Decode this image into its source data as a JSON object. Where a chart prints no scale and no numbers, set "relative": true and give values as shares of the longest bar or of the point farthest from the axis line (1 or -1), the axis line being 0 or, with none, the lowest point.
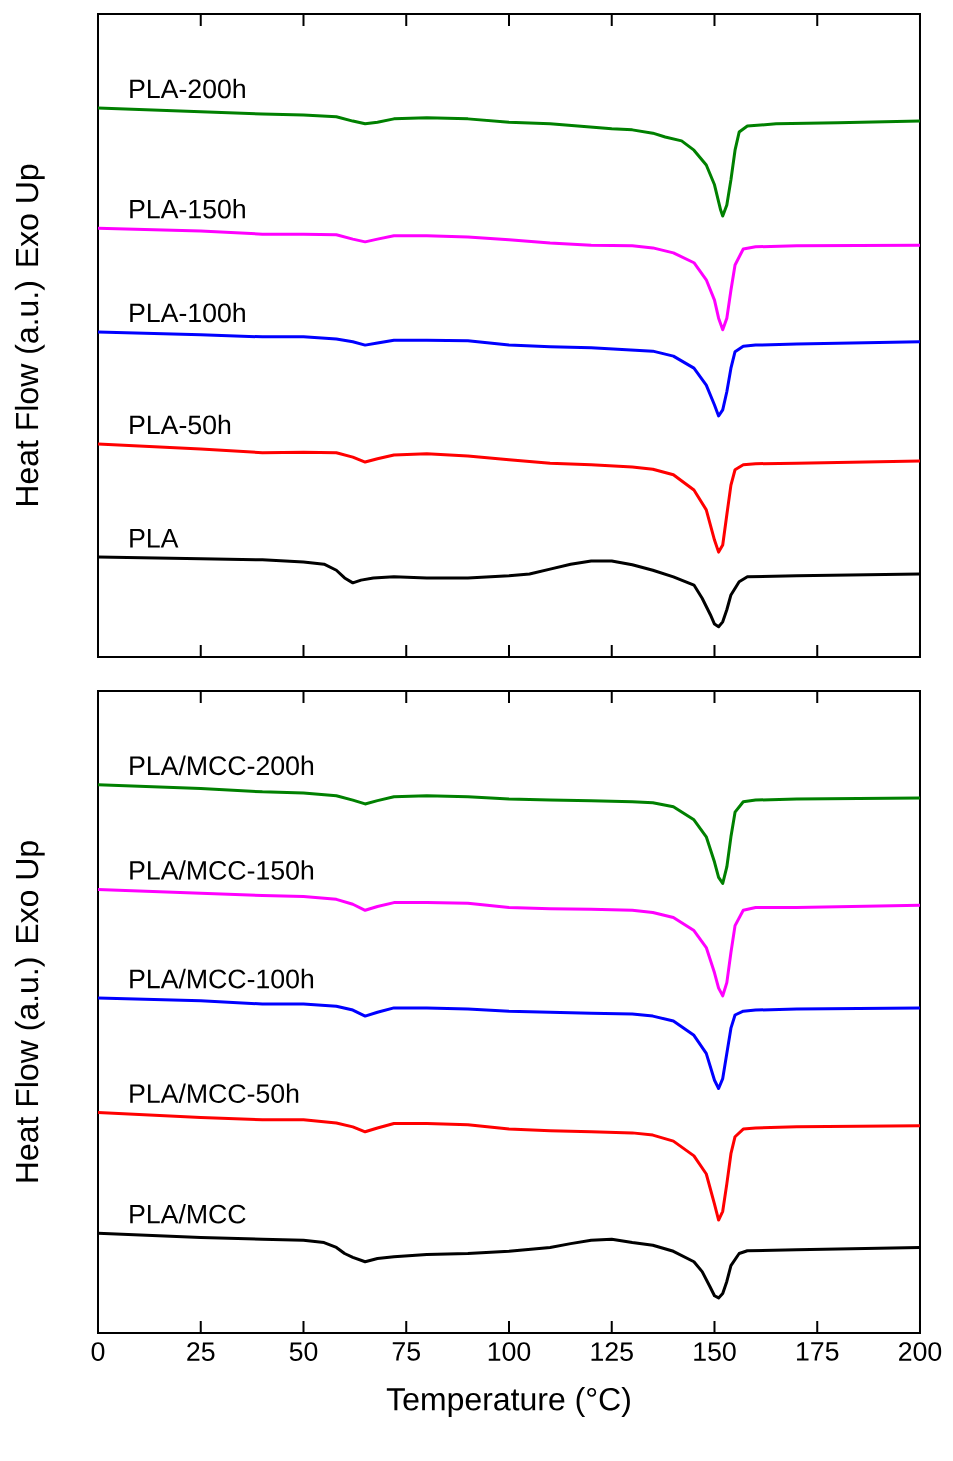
{
  "chart_data": [
    {
      "type": "line",
      "relative": true,
      "ylabel": "Heat Flow (a.u.) Exo Up",
      "xlim": [
        0,
        200
      ],
      "xticks": [
        0,
        25,
        50,
        75,
        100,
        125,
        150,
        175,
        200
      ],
      "tick_labels": false,
      "marker": "none",
      "series": [
        {
          "name": "PLA-200h",
          "color": "#008000",
          "x": [
            0,
            25,
            40,
            50,
            58,
            62,
            65,
            68,
            72,
            80,
            90,
            100,
            110,
            120,
            125,
            130,
            135,
            138,
            142,
            145,
            148,
            150,
            151.5,
            152,
            153,
            154,
            155,
            156,
            158,
            165,
            180,
            200
          ],
          "values": [
            1.0,
            0.993,
            0.989,
            0.987,
            0.984,
            0.976,
            0.971,
            0.974,
            0.98,
            0.982,
            0.98,
            0.974,
            0.971,
            0.965,
            0.962,
            0.96,
            0.954,
            0.947,
            0.94,
            0.923,
            0.896,
            0.86,
            0.814,
            0.803,
            0.823,
            0.869,
            0.923,
            0.956,
            0.967,
            0.971,
            0.973,
            0.976
          ]
        },
        {
          "name": "PLA-150h",
          "color": "#ff00ff",
          "x": [
            0,
            25,
            40,
            50,
            58,
            62,
            65,
            68,
            72,
            80,
            90,
            100,
            110,
            120,
            130,
            135,
            140,
            145,
            148,
            150,
            151,
            152,
            153,
            154,
            155,
            157,
            160,
            170,
            200
          ],
          "values": [
            0.781,
            0.776,
            0.77,
            0.77,
            0.769,
            0.761,
            0.756,
            0.761,
            0.767,
            0.767,
            0.765,
            0.76,
            0.754,
            0.75,
            0.749,
            0.745,
            0.736,
            0.718,
            0.687,
            0.65,
            0.617,
            0.596,
            0.617,
            0.668,
            0.714,
            0.743,
            0.747,
            0.749,
            0.75
          ]
        },
        {
          "name": "PLA-100h",
          "color": "#0000ff",
          "x": [
            0,
            25,
            40,
            50,
            58,
            62,
            65,
            68,
            72,
            80,
            90,
            100,
            110,
            120,
            130,
            135,
            140,
            145,
            148,
            150,
            151,
            152,
            153,
            154,
            155,
            157,
            160,
            170,
            200
          ],
          "values": [
            0.592,
            0.587,
            0.583,
            0.583,
            0.579,
            0.574,
            0.568,
            0.572,
            0.577,
            0.577,
            0.576,
            0.568,
            0.565,
            0.563,
            0.559,
            0.557,
            0.548,
            0.526,
            0.495,
            0.459,
            0.439,
            0.45,
            0.483,
            0.526,
            0.556,
            0.566,
            0.568,
            0.57,
            0.574
          ]
        },
        {
          "name": "PLA-50h",
          "color": "#ff0000",
          "x": [
            0,
            25,
            40,
            50,
            58,
            62,
            65,
            68,
            72,
            80,
            90,
            100,
            110,
            120,
            130,
            135,
            140,
            145,
            148,
            150,
            151,
            152,
            153,
            154,
            155,
            157,
            160,
            170,
            200
          ],
          "values": [
            0.388,
            0.379,
            0.372,
            0.373,
            0.372,
            0.364,
            0.355,
            0.361,
            0.368,
            0.37,
            0.366,
            0.359,
            0.353,
            0.35,
            0.346,
            0.342,
            0.332,
            0.304,
            0.268,
            0.213,
            0.191,
            0.204,
            0.259,
            0.313,
            0.341,
            0.35,
            0.352,
            0.353,
            0.357
          ]
        },
        {
          "name": "PLA",
          "color": "#000000",
          "x": [
            0,
            25,
            40,
            50,
            55,
            58,
            60,
            62,
            64,
            67,
            72,
            80,
            90,
            100,
            105,
            110,
            115,
            120,
            125,
            130,
            135,
            140,
            145,
            147,
            149,
            150,
            151,
            152,
            153,
            154,
            156,
            158,
            170,
            200
          ],
          "values": [
            0.182,
            0.179,
            0.177,
            0.173,
            0.169,
            0.158,
            0.144,
            0.135,
            0.14,
            0.144,
            0.146,
            0.144,
            0.144,
            0.148,
            0.151,
            0.16,
            0.169,
            0.175,
            0.175,
            0.168,
            0.158,
            0.146,
            0.131,
            0.107,
            0.077,
            0.06,
            0.055,
            0.064,
            0.086,
            0.113,
            0.137,
            0.146,
            0.148,
            0.151
          ]
        }
      ]
    },
    {
      "type": "line",
      "relative": true,
      "xlabel": "Temperature (°C)",
      "ylabel": "Heat Flow (a.u.) Exo Up",
      "xlim": [
        0,
        200
      ],
      "xticks": [
        0,
        25,
        50,
        75,
        100,
        125,
        150,
        175,
        200
      ],
      "tick_labels": "x",
      "marker": "none",
      "series": [
        {
          "name": "PLA/MCC-200h",
          "color": "#008000",
          "x": [
            0,
            25,
            40,
            50,
            58,
            62,
            65,
            68,
            72,
            80,
            90,
            100,
            110,
            120,
            130,
            135,
            140,
            145,
            148,
            150,
            151,
            152,
            153,
            154,
            155,
            157,
            160,
            170,
            200
          ],
          "values": [
            1.0,
            0.993,
            0.987,
            0.985,
            0.98,
            0.972,
            0.965,
            0.971,
            0.978,
            0.98,
            0.978,
            0.974,
            0.972,
            0.971,
            0.969,
            0.967,
            0.96,
            0.936,
            0.905,
            0.859,
            0.831,
            0.82,
            0.85,
            0.905,
            0.95,
            0.969,
            0.972,
            0.974,
            0.976
          ]
        },
        {
          "name": "PLA/MCC-150h",
          "color": "#ff00ff",
          "x": [
            0,
            25,
            40,
            50,
            58,
            62,
            65,
            68,
            72,
            80,
            90,
            100,
            110,
            120,
            130,
            135,
            140,
            145,
            148,
            150,
            151,
            152,
            153,
            154,
            155,
            157,
            160,
            170,
            200
          ],
          "values": [
            0.809,
            0.802,
            0.798,
            0.796,
            0.791,
            0.782,
            0.771,
            0.778,
            0.785,
            0.785,
            0.784,
            0.776,
            0.774,
            0.773,
            0.771,
            0.767,
            0.758,
            0.734,
            0.703,
            0.657,
            0.629,
            0.615,
            0.639,
            0.694,
            0.743,
            0.771,
            0.776,
            0.776,
            0.78
          ]
        },
        {
          "name": "PLA/MCC-100h",
          "color": "#0000ff",
          "x": [
            0,
            25,
            40,
            50,
            58,
            62,
            65,
            68,
            72,
            80,
            90,
            100,
            110,
            120,
            130,
            135,
            140,
            145,
            148,
            150,
            151,
            152,
            153,
            154,
            155,
            157,
            160,
            170,
            200
          ],
          "values": [
            0.611,
            0.606,
            0.6,
            0.6,
            0.596,
            0.589,
            0.578,
            0.585,
            0.593,
            0.593,
            0.591,
            0.587,
            0.585,
            0.583,
            0.582,
            0.578,
            0.569,
            0.543,
            0.51,
            0.461,
            0.446,
            0.464,
            0.51,
            0.556,
            0.58,
            0.587,
            0.589,
            0.591,
            0.593
          ]
        },
        {
          "name": "PLA/MCC-50h",
          "color": "#ff0000",
          "x": [
            0,
            25,
            40,
            50,
            58,
            62,
            65,
            68,
            72,
            80,
            90,
            100,
            110,
            120,
            130,
            135,
            140,
            145,
            148,
            150,
            151,
            152,
            153,
            154,
            155,
            157,
            160,
            170,
            200
          ],
          "values": [
            0.402,
            0.393,
            0.389,
            0.389,
            0.383,
            0.376,
            0.367,
            0.374,
            0.382,
            0.382,
            0.38,
            0.372,
            0.369,
            0.367,
            0.365,
            0.361,
            0.35,
            0.323,
            0.29,
            0.235,
            0.206,
            0.222,
            0.272,
            0.327,
            0.358,
            0.372,
            0.374,
            0.376,
            0.378
          ]
        },
        {
          "name": "PLA/MCC",
          "color": "#000000",
          "x": [
            0,
            25,
            40,
            50,
            55,
            58,
            60,
            62,
            65,
            68,
            72,
            80,
            90,
            100,
            110,
            115,
            120,
            125,
            130,
            135,
            140,
            145,
            147,
            149,
            150,
            151,
            152,
            153,
            154,
            156,
            158,
            170,
            200
          ],
          "values": [
            0.182,
            0.174,
            0.171,
            0.169,
            0.165,
            0.156,
            0.145,
            0.138,
            0.13,
            0.136,
            0.139,
            0.143,
            0.145,
            0.149,
            0.156,
            0.163,
            0.169,
            0.171,
            0.165,
            0.16,
            0.149,
            0.13,
            0.112,
            0.083,
            0.068,
            0.064,
            0.072,
            0.094,
            0.123,
            0.145,
            0.15,
            0.152,
            0.156
          ]
        }
      ]
    }
  ]
}
